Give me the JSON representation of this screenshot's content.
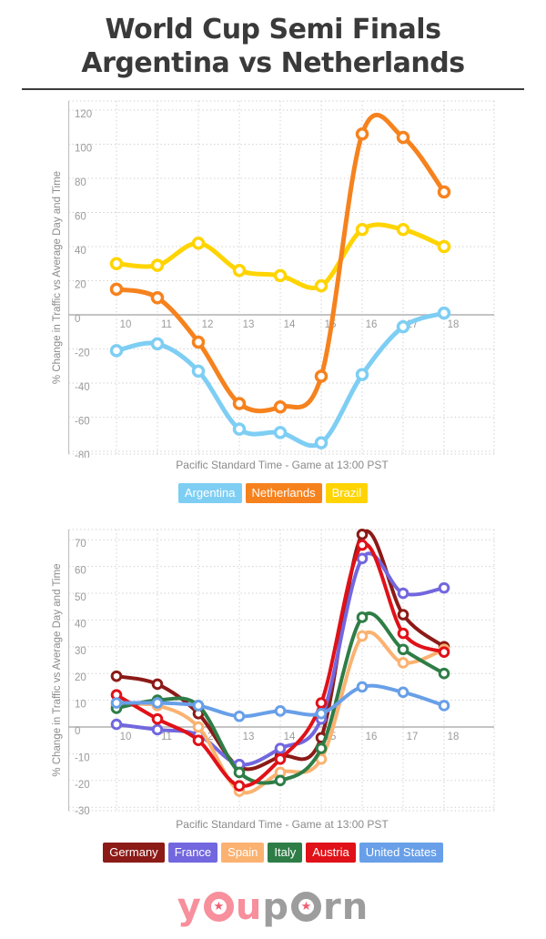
{
  "header": {
    "title_line1": "World Cup Semi Finals",
    "title_line2": "Argentina vs Netherlands"
  },
  "chart_data": [
    {
      "type": "line",
      "title": "",
      "x": [
        10,
        11,
        12,
        13,
        14,
        15,
        16,
        17,
        18
      ],
      "xlabel": "Pacific Standard Time - Game at 13:00 PST",
      "ylabel": "% Change in Traffic vs Average Day and Time",
      "yticks": [
        120,
        100,
        80,
        60,
        40,
        20,
        0,
        -20,
        -40,
        -60,
        -80
      ],
      "ylim": [
        -85,
        128
      ],
      "grid": true,
      "legend_position": "bottom",
      "series": [
        {
          "name": "Argentina",
          "color": "#7ecef4",
          "values": [
            -21,
            -17,
            -33,
            -67,
            -69,
            -75,
            -35,
            -7,
            1
          ]
        },
        {
          "name": "Brazil",
          "color": "#ffd400",
          "values": [
            30,
            29,
            42,
            26,
            23,
            17,
            50,
            50,
            40
          ]
        },
        {
          "name": "Netherlands",
          "color": "#f6821e",
          "values": [
            15,
            10,
            -16,
            -52,
            -54,
            -36,
            106,
            104,
            72
          ]
        }
      ],
      "legend": [
        "Argentina",
        "Netherlands",
        "Brazil"
      ]
    },
    {
      "type": "line",
      "title": "",
      "x": [
        10,
        11,
        12,
        13,
        14,
        15,
        16,
        17,
        18
      ],
      "xlabel": "Pacific Standard Time - Game at 13:00 PST",
      "ylabel": "% Change in Traffic vs Average Day and Time",
      "yticks": [
        70,
        60,
        50,
        40,
        30,
        20,
        10,
        0,
        -10,
        -20,
        -30
      ],
      "ylim": [
        -31,
        74
      ],
      "grid": true,
      "legend_position": "bottom",
      "series": [
        {
          "name": "Germany",
          "color": "#8c1a17",
          "values": [
            19,
            16,
            5,
            -15,
            -11,
            -4,
            72,
            42,
            30
          ]
        },
        {
          "name": "France",
          "color": "#7267de",
          "values": [
            1,
            -1,
            -3,
            -14,
            -8,
            3,
            63,
            50,
            52
          ]
        },
        {
          "name": "Spain",
          "color": "#fbb271",
          "values": [
            8,
            8,
            0,
            -24,
            -17,
            -12,
            34,
            24,
            29
          ]
        },
        {
          "name": "Italy",
          "color": "#2e7d46",
          "values": [
            7,
            10,
            8,
            -17,
            -20,
            -8,
            41,
            29,
            20
          ]
        },
        {
          "name": "Austria",
          "color": "#e01118",
          "values": [
            12,
            3,
            -5,
            -22,
            -12,
            9,
            68,
            35,
            28
          ]
        },
        {
          "name": "United States",
          "color": "#689fe8",
          "values": [
            9,
            9,
            8,
            4,
            6,
            5,
            15,
            13,
            8
          ]
        }
      ],
      "legend": [
        "Germany",
        "France",
        "Spain",
        "Italy",
        "Austria",
        "United States"
      ]
    }
  ],
  "footer": {
    "logo_left": "you",
    "logo_right": "porn",
    "star": "★"
  }
}
